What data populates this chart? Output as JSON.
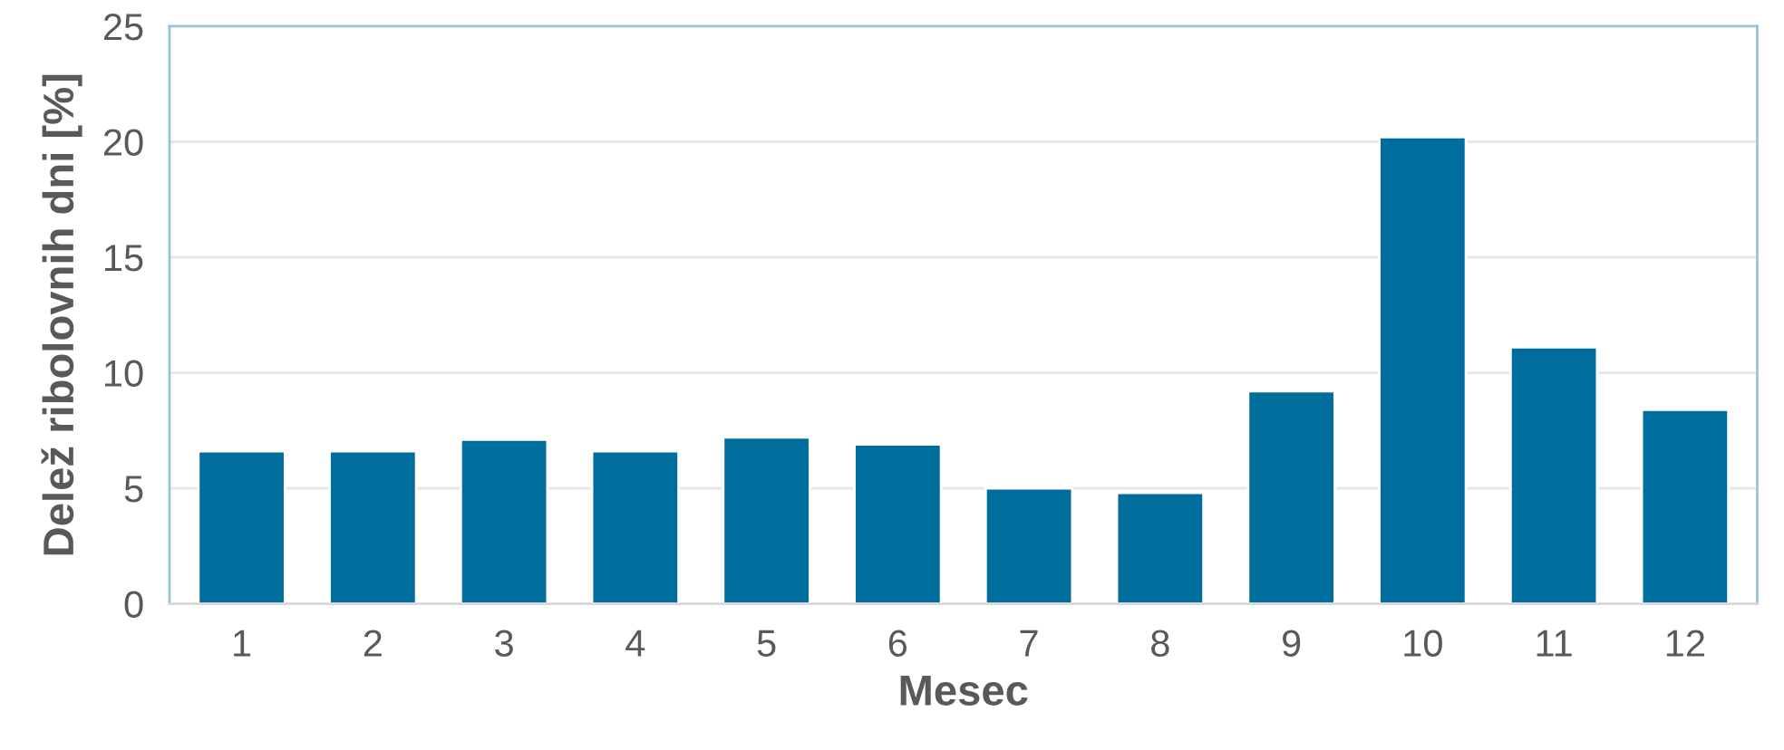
{
  "chart_data": {
    "type": "bar",
    "xlabel": "Mesec",
    "ylabel": "Delež ribolovnih dni [%]",
    "categories": [
      "1",
      "2",
      "3",
      "4",
      "5",
      "6",
      "7",
      "8",
      "9",
      "10",
      "11",
      "12"
    ],
    "values": [
      6.6,
      6.6,
      7.1,
      6.6,
      7.2,
      6.9,
      5.0,
      4.8,
      9.2,
      20.2,
      11.1,
      8.4
    ],
    "color": "#006e9c",
    "ylim": [
      0,
      25
    ],
    "yticks": [
      0,
      5,
      10,
      15,
      20,
      25
    ],
    "grid": "y"
  }
}
